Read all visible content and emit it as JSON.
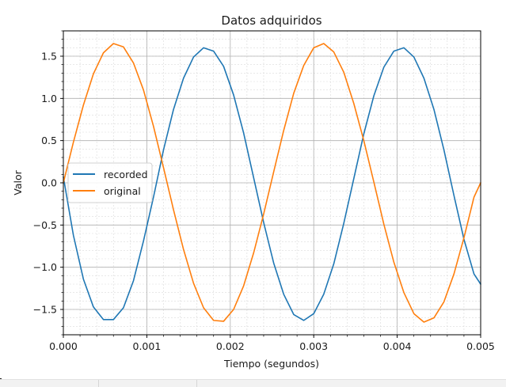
{
  "window": {
    "accent": "#1f77b4"
  },
  "chart_data": {
    "type": "line",
    "title": "Datos adquiridos",
    "xlabel": "Tiempo (segundos)",
    "ylabel": "Valor",
    "xlim": [
      0,
      0.005
    ],
    "ylim": [
      -1.8,
      1.8
    ],
    "x_ticks": [
      0.0,
      0.001,
      0.002,
      0.003,
      0.004,
      0.005
    ],
    "x_tick_labels": [
      "0.000",
      "0.001",
      "0.002",
      "0.003",
      "0.004",
      "0.005"
    ],
    "y_ticks": [
      -1.5,
      -1.0,
      -0.5,
      0.0,
      0.5,
      1.0,
      1.5
    ],
    "y_tick_labels": [
      "−1.5",
      "−1.0",
      "−0.5",
      "0.0",
      "0.5",
      "1.0",
      "1.5"
    ],
    "grid": true,
    "minor_grid": true,
    "legend_position": "center-left",
    "series": [
      {
        "name": "recorded",
        "color": "#1f77b4",
        "x": [
          0,
          0.00012,
          0.00024,
          0.00036,
          0.00048,
          0.0006,
          0.00072,
          0.00084,
          0.00096,
          0.00108,
          0.0012,
          0.00132,
          0.00144,
          0.00156,
          0.00168,
          0.0018,
          0.00192,
          0.00204,
          0.00216,
          0.00228,
          0.0024,
          0.00252,
          0.00264,
          0.00276,
          0.00288,
          0.003,
          0.00312,
          0.00324,
          0.00336,
          0.00348,
          0.0036,
          0.00372,
          0.00384,
          0.00396,
          0.00408,
          0.0042,
          0.00432,
          0.00444,
          0.00456,
          0.00468,
          0.0048,
          0.00492,
          0.005
        ],
        "y": [
          0.07,
          -0.62,
          -1.14,
          -1.47,
          -1.62,
          -1.62,
          -1.48,
          -1.16,
          -0.69,
          -0.17,
          0.39,
          0.87,
          1.24,
          1.49,
          1.6,
          1.56,
          1.38,
          1.04,
          0.59,
          0.06,
          -0.47,
          -0.95,
          -1.32,
          -1.56,
          -1.63,
          -1.55,
          -1.32,
          -0.96,
          -0.48,
          0.05,
          0.58,
          1.03,
          1.37,
          1.56,
          1.6,
          1.49,
          1.24,
          0.87,
          0.39,
          -0.15,
          -0.67,
          -1.08,
          -1.2
        ]
      },
      {
        "name": "original",
        "color": "#ff7f0e",
        "x": [
          0,
          0.00012,
          0.00024,
          0.00036,
          0.00048,
          0.0006,
          0.00072,
          0.00084,
          0.00096,
          0.00108,
          0.0012,
          0.00132,
          0.00144,
          0.00156,
          0.00168,
          0.0018,
          0.00192,
          0.00204,
          0.00216,
          0.00228,
          0.0024,
          0.00252,
          0.00264,
          0.00276,
          0.00288,
          0.003,
          0.00312,
          0.00324,
          0.00336,
          0.00348,
          0.0036,
          0.00372,
          0.00384,
          0.00396,
          0.00408,
          0.0042,
          0.00432,
          0.00444,
          0.00456,
          0.00468,
          0.0048,
          0.00492,
          0.005
        ],
        "y": [
          0.0,
          0.48,
          0.92,
          1.29,
          1.54,
          1.65,
          1.61,
          1.42,
          1.1,
          0.67,
          0.18,
          -0.32,
          -0.79,
          -1.19,
          -1.48,
          -1.63,
          -1.64,
          -1.5,
          -1.22,
          -0.83,
          -0.37,
          0.13,
          0.62,
          1.06,
          1.39,
          1.6,
          1.65,
          1.55,
          1.31,
          0.94,
          0.5,
          0.01,
          -0.49,
          -0.94,
          -1.3,
          -1.55,
          -1.65,
          -1.6,
          -1.41,
          -1.08,
          -0.65,
          -0.17,
          0.0
        ]
      }
    ]
  }
}
